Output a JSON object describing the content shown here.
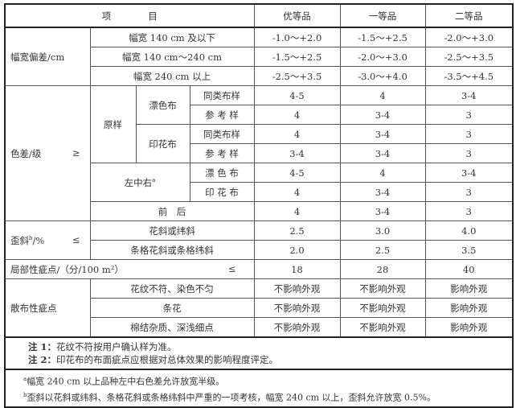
{
  "header": {
    "item": "项　　　　目",
    "grades": [
      "优等品",
      "一等品",
      "二等品"
    ]
  },
  "width_dev": {
    "label": "幅宽偏差/cm",
    "rows": [
      {
        "name": "幅宽 140 cm 及以下",
        "v": [
          "-1.0～+2.0",
          "-1.5～+2.5",
          "-2.0～+3.0"
        ]
      },
      {
        "name": "幅宽 140 cm～240 cm",
        "v": [
          "-1.5～+2.5",
          "-2.0～+3.0",
          "-2.5～+3.5"
        ]
      },
      {
        "name": "幅宽 240 cm 以上",
        "v": [
          "-2.5～+3.5",
          "-3.0～+4.0",
          "-3.5～+4.5"
        ]
      }
    ]
  },
  "color": {
    "label": "色差/级",
    "op": "≥",
    "original": "原样",
    "bleached": "漂色布",
    "printed": "印花布",
    "lzr": "左中右",
    "lzr_sup": "a",
    "front_back": "前　后",
    "rows": [
      {
        "name": "同类布样",
        "v": [
          "4-5",
          "4",
          "3-4"
        ]
      },
      {
        "name": "参 考 样",
        "v": [
          "4",
          "3-4",
          "3"
        ]
      },
      {
        "name": "同类布样",
        "v": [
          "4",
          "3-4",
          "3"
        ]
      },
      {
        "name": "参 考 样",
        "v": [
          "3-4",
          "3-4",
          "3"
        ]
      },
      {
        "name": "漂 色 布",
        "v": [
          "4-5",
          "4",
          "3-4"
        ]
      },
      {
        "name": "印 花 布",
        "v": [
          "4",
          "3-4",
          "3"
        ]
      },
      {
        "v": [
          "4",
          "3-4",
          "3"
        ]
      }
    ]
  },
  "skew": {
    "label": "歪斜",
    "sup": "b",
    "unit": "/%",
    "op": "≤",
    "rows": [
      {
        "name": "花斜或纬斜",
        "v": [
          "2.5",
          "3.0",
          "4.0"
        ]
      },
      {
        "name": "条格花斜或条格纬斜",
        "v": [
          "2.0",
          "2.5",
          "3.5"
        ]
      }
    ]
  },
  "local": {
    "label": "局部性疵点/（分/100 m²）",
    "op": "≤",
    "v": [
      "18",
      "28",
      "40"
    ]
  },
  "scatter": {
    "label": "散布性疵点",
    "rows": [
      {
        "name": "花纹不符、染色不匀",
        "v": [
          "不影响外观",
          "不影响外观",
          "影响外观"
        ]
      },
      {
        "name": "条花",
        "v": [
          "不影响外观",
          "不影响外观",
          "影响外观"
        ]
      },
      {
        "name": "棉结杂质、深浅细点",
        "v": [
          "不影响外观",
          "不影响外观",
          "影响外观"
        ]
      }
    ]
  },
  "notes": [
    {
      "k": "注 1：",
      "t": "花纹不符按用户确认样为准。"
    },
    {
      "k": "注 2：",
      "t": "印花布的布面疵点应根据对总体效果的影响程度评定。"
    }
  ],
  "footnotes": [
    {
      "m": "a",
      "t": "幅宽 240 cm 以上品种左中右色差允许放宽半级。"
    },
    {
      "m": "b",
      "t": "歪斜以花斜或纬斜、条格花斜或条格纬斜中严重的一项考核，幅宽 240 cm 以上，歪斜允许放宽 0.5%。"
    }
  ]
}
